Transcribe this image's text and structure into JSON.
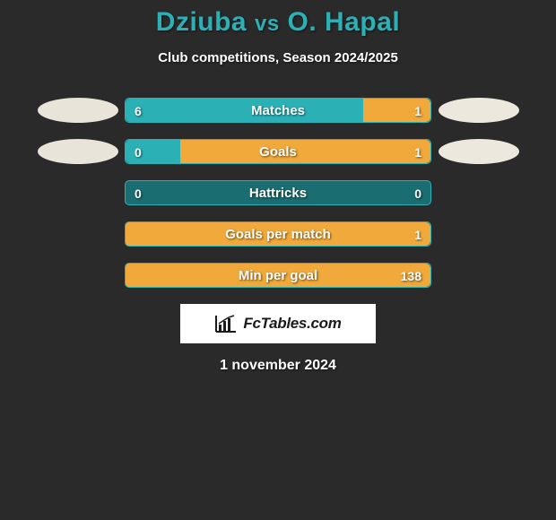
{
  "colors": {
    "background": "#2a2a2a",
    "primary_text": "#ffffff",
    "title_color": "#2bb0b6",
    "bar_left": "#2bb0b6",
    "bar_right": "#f0a93a",
    "bar_track": "#1a6d70",
    "avatar_left": "#e8e4da",
    "avatar_right": "#ece8de",
    "logo_bg": "#ffffff",
    "logo_text": "#1a1a1a"
  },
  "title": {
    "player1": "Dziuba",
    "vs": "vs",
    "player2": "O. Hapal"
  },
  "subtitle": "Club competitions, Season 2024/2025",
  "rows": [
    {
      "label": "Matches",
      "left_val": "6",
      "right_val": "1",
      "left_pct": 78,
      "right_pct": 22,
      "show_avatars": true
    },
    {
      "label": "Goals",
      "left_val": "0",
      "right_val": "1",
      "left_pct": 18,
      "right_pct": 82,
      "show_avatars": true
    },
    {
      "label": "Hattricks",
      "left_val": "0",
      "right_val": "0",
      "left_pct": 0,
      "right_pct": 0,
      "show_avatars": false
    },
    {
      "label": "Goals per match",
      "left_val": "",
      "right_val": "1",
      "left_pct": 0,
      "right_pct": 100,
      "show_avatars": false
    },
    {
      "label": "Min per goal",
      "left_val": "",
      "right_val": "138",
      "left_pct": 0,
      "right_pct": 100,
      "show_avatars": false
    }
  ],
  "logo": {
    "text": "FcTables.com"
  },
  "date": "1 november 2024"
}
